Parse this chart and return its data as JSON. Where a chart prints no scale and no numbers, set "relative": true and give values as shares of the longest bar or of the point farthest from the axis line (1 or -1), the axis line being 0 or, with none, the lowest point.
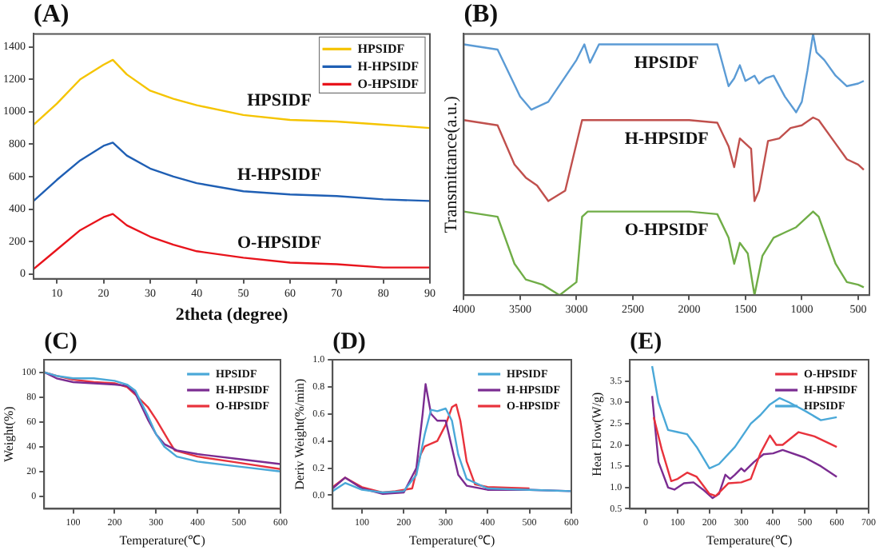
{
  "chart_data": [
    {
      "type": "line",
      "title": "(A)",
      "xlabel": "2theta (degree)",
      "xlim": [
        5,
        90
      ],
      "xticks": [
        10,
        20,
        30,
        40,
        50,
        60,
        70,
        80,
        90
      ],
      "ylim": [
        -30,
        1480
      ],
      "yticks": [
        0,
        200,
        400,
        600,
        800,
        1000,
        1200,
        1400
      ],
      "legend": "top right",
      "grid": false,
      "series": [
        {
          "name": "HPSIDF",
          "color": "#f5c400",
          "x": [
            5,
            10,
            15,
            20,
            22,
            25,
            30,
            35,
            40,
            50,
            60,
            70,
            80,
            90
          ],
          "values": [
            920,
            1050,
            1200,
            1290,
            1320,
            1230,
            1130,
            1080,
            1040,
            980,
            950,
            940,
            920,
            900
          ]
        },
        {
          "name": "H-HPSIDF",
          "color": "#1f5fb4",
          "x": [
            5,
            10,
            15,
            20,
            22,
            25,
            30,
            35,
            40,
            50,
            60,
            70,
            80,
            90
          ],
          "values": [
            450,
            580,
            700,
            790,
            810,
            730,
            650,
            600,
            560,
            510,
            490,
            480,
            460,
            450
          ]
        },
        {
          "name": "O-HPSIDF",
          "color": "#e8141c",
          "x": [
            5,
            10,
            15,
            20,
            22,
            25,
            30,
            35,
            40,
            50,
            60,
            70,
            80,
            90
          ],
          "values": [
            30,
            150,
            270,
            350,
            370,
            300,
            230,
            180,
            140,
            100,
            70,
            60,
            40,
            40
          ]
        }
      ]
    },
    {
      "type": "line",
      "title": "(B)",
      "ylabel": "Transmittance(a.u.)",
      "xlim": [
        4000,
        400
      ],
      "xticks": [
        4000,
        3500,
        3000,
        2500,
        2000,
        1500,
        1000,
        500
      ],
      "relative": true,
      "grid": false,
      "series": [
        {
          "name": "HPSIDF",
          "color": "#5b9bd5",
          "x": [
            4000,
            3700,
            3500,
            3400,
            3250,
            3000,
            2930,
            2880,
            2800,
            2500,
            2000,
            1750,
            1650,
            1600,
            1550,
            1500,
            1420,
            1380,
            1320,
            1250,
            1150,
            1050,
            1000,
            950,
            900,
            870,
            800,
            700,
            600,
            500,
            450
          ],
          "values": [
            0.96,
            0.94,
            0.76,
            0.71,
            0.74,
            0.9,
            0.96,
            0.89,
            0.96,
            0.96,
            0.96,
            0.96,
            0.8,
            0.83,
            0.88,
            0.82,
            0.84,
            0.81,
            0.83,
            0.84,
            0.76,
            0.7,
            0.74,
            0.86,
            1.0,
            0.93,
            0.9,
            0.84,
            0.8,
            0.81,
            0.82
          ]
        },
        {
          "name": "H-HPSIDF",
          "color": "#c0504d",
          "x": [
            4000,
            3700,
            3550,
            3450,
            3350,
            3250,
            3100,
            2950,
            2900,
            2500,
            2000,
            1750,
            1650,
            1600,
            1550,
            1450,
            1420,
            1380,
            1300,
            1200,
            1100,
            1000,
            900,
            850,
            700,
            600,
            500,
            450
          ],
          "values": [
            0.67,
            0.65,
            0.5,
            0.45,
            0.42,
            0.36,
            0.4,
            0.67,
            0.67,
            0.67,
            0.67,
            0.66,
            0.57,
            0.49,
            0.6,
            0.56,
            0.36,
            0.4,
            0.59,
            0.6,
            0.64,
            0.65,
            0.68,
            0.67,
            0.58,
            0.52,
            0.5,
            0.48
          ]
        },
        {
          "name": "O-HPSIDF",
          "color": "#70ad47",
          "x": [
            4000,
            3700,
            3550,
            3450,
            3300,
            3150,
            3000,
            2950,
            2900,
            2500,
            2000,
            1750,
            1650,
            1600,
            1550,
            1480,
            1420,
            1350,
            1250,
            1150,
            1050,
            900,
            850,
            700,
            600,
            500,
            450
          ],
          "values": [
            0.32,
            0.3,
            0.12,
            0.06,
            0.04,
            0.0,
            0.05,
            0.3,
            0.32,
            0.32,
            0.32,
            0.31,
            0.22,
            0.12,
            0.2,
            0.16,
            0.0,
            0.15,
            0.22,
            0.24,
            0.26,
            0.32,
            0.3,
            0.12,
            0.05,
            0.04,
            0.03
          ]
        }
      ]
    },
    {
      "type": "line",
      "title": "(C)",
      "xlabel": "Temperature(℃)",
      "ylabel": "Weight(%)",
      "xlim": [
        30,
        600
      ],
      "xticks": [
        100,
        200,
        300,
        400,
        500,
        600
      ],
      "ylim": [
        -10,
        110
      ],
      "yticks": [
        0,
        20,
        40,
        60,
        80,
        100
      ],
      "legend": "top right",
      "grid": false,
      "series": [
        {
          "name": "HPSIDF",
          "color": "#4aa8d8",
          "x": [
            30,
            60,
            100,
            150,
            200,
            230,
            250,
            280,
            300,
            320,
            350,
            400,
            500,
            600
          ],
          "values": [
            100,
            97,
            95,
            95,
            93,
            90,
            85,
            65,
            50,
            40,
            32,
            28,
            24,
            20
          ]
        },
        {
          "name": "H-HPSIDF",
          "color": "#7b2c91",
          "x": [
            30,
            60,
            100,
            150,
            200,
            230,
            250,
            280,
            300,
            320,
            350,
            400,
            500,
            600
          ],
          "values": [
            100,
            95,
            92,
            91,
            90,
            89,
            83,
            62,
            50,
            42,
            37,
            34,
            30,
            26
          ]
        },
        {
          "name": "O-HPSIDF",
          "color": "#e8323c",
          "x": [
            30,
            60,
            100,
            150,
            200,
            230,
            250,
            280,
            300,
            330,
            345,
            400,
            500,
            600
          ],
          "values": [
            100,
            97,
            94,
            92,
            91,
            88,
            82,
            72,
            62,
            45,
            37,
            32,
            27,
            22
          ]
        }
      ]
    },
    {
      "type": "line",
      "title": "(D)",
      "xlabel": "Temperature(℃)",
      "ylabel": "Deriv Weight(%/min)",
      "xlim": [
        30,
        600
      ],
      "xticks": [
        100,
        200,
        300,
        400,
        500,
        600
      ],
      "ylim": [
        -0.1,
        1.0
      ],
      "yticks": [
        {
          "value": 0,
          "label": "0.0"
        },
        0.2,
        0.4,
        0.6,
        0.8,
        {
          "value": 1,
          "label": "1.0"
        }
      ],
      "legend": "top right",
      "grid": false,
      "series": [
        {
          "name": "HPSIDF",
          "color": "#4aa8d8",
          "x": [
            30,
            60,
            100,
            150,
            200,
            230,
            250,
            265,
            280,
            300,
            315,
            330,
            350,
            400,
            500,
            600
          ],
          "values": [
            0.03,
            0.09,
            0.04,
            0.02,
            0.03,
            0.15,
            0.45,
            0.63,
            0.62,
            0.64,
            0.55,
            0.3,
            0.12,
            0.05,
            0.04,
            0.03
          ]
        },
        {
          "name": "H-HPSIDF",
          "color": "#7b2c91",
          "x": [
            30,
            60,
            100,
            150,
            200,
            230,
            245,
            252,
            265,
            280,
            300,
            315,
            330,
            350,
            400,
            500,
            600
          ],
          "values": [
            0.05,
            0.13,
            0.05,
            0.01,
            0.02,
            0.2,
            0.6,
            0.82,
            0.6,
            0.55,
            0.55,
            0.35,
            0.15,
            0.07,
            0.04,
            0.04,
            0.03
          ]
        },
        {
          "name": "O-HPSIDF",
          "color": "#e8323c",
          "x": [
            30,
            60,
            100,
            150,
            180,
            220,
            240,
            250,
            280,
            300,
            315,
            325,
            335,
            350,
            370,
            400,
            500
          ],
          "values": [
            0.06,
            0.13,
            0.06,
            0.02,
            0.03,
            0.05,
            0.3,
            0.36,
            0.4,
            0.52,
            0.65,
            0.67,
            0.55,
            0.25,
            0.08,
            0.06,
            0.05
          ]
        }
      ]
    },
    {
      "type": "line",
      "title": "(E)",
      "xlabel": "Temperature(℃)",
      "ylabel": "Heat Flow(W/g)",
      "xlim": [
        -50,
        700
      ],
      "xticks": [
        0,
        100,
        200,
        300,
        400,
        500,
        600,
        700
      ],
      "ylim": [
        0.5,
        4.0
      ],
      "yticks": [
        0.5,
        {
          "value": 1,
          "label": "1.0"
        },
        1.5,
        {
          "value": 2,
          "label": "2.0"
        },
        2.5,
        {
          "value": 3,
          "label": "3.0"
        },
        3.5
      ],
      "legend": "top right",
      "grid": false,
      "series": [
        {
          "name": "O-HPSIDF",
          "color": "#e8323c",
          "x": [
            25,
            50,
            80,
            100,
            130,
            160,
            200,
            220,
            260,
            300,
            330,
            360,
            390,
            410,
            430,
            480,
            530,
            600
          ],
          "values": [
            2.65,
            1.9,
            1.15,
            1.2,
            1.35,
            1.25,
            0.85,
            0.8,
            1.1,
            1.12,
            1.2,
            1.8,
            2.22,
            2.0,
            2.0,
            2.3,
            2.2,
            1.95
          ]
        },
        {
          "name": "H-HPSIDF",
          "color": "#7b2c91",
          "x": [
            20,
            40,
            70,
            90,
            120,
            150,
            180,
            210,
            230,
            250,
            265,
            280,
            300,
            310,
            340,
            370,
            400,
            430,
            500,
            550,
            600
          ],
          "values": [
            3.15,
            1.6,
            1.0,
            0.95,
            1.1,
            1.12,
            0.95,
            0.75,
            0.85,
            1.3,
            1.2,
            1.3,
            1.45,
            1.38,
            1.6,
            1.78,
            1.8,
            1.88,
            1.7,
            1.5,
            1.25
          ]
        },
        {
          "name": "HPSIDF",
          "color": "#4aa8d8",
          "x": [
            20,
            40,
            70,
            100,
            130,
            160,
            200,
            230,
            280,
            330,
            360,
            390,
            420,
            450,
            500,
            550,
            600
          ],
          "values": [
            3.85,
            3.0,
            2.35,
            2.3,
            2.25,
            1.95,
            1.45,
            1.55,
            1.95,
            2.5,
            2.7,
            2.95,
            3.1,
            3.0,
            2.8,
            2.58,
            2.65
          ]
        }
      ]
    }
  ]
}
